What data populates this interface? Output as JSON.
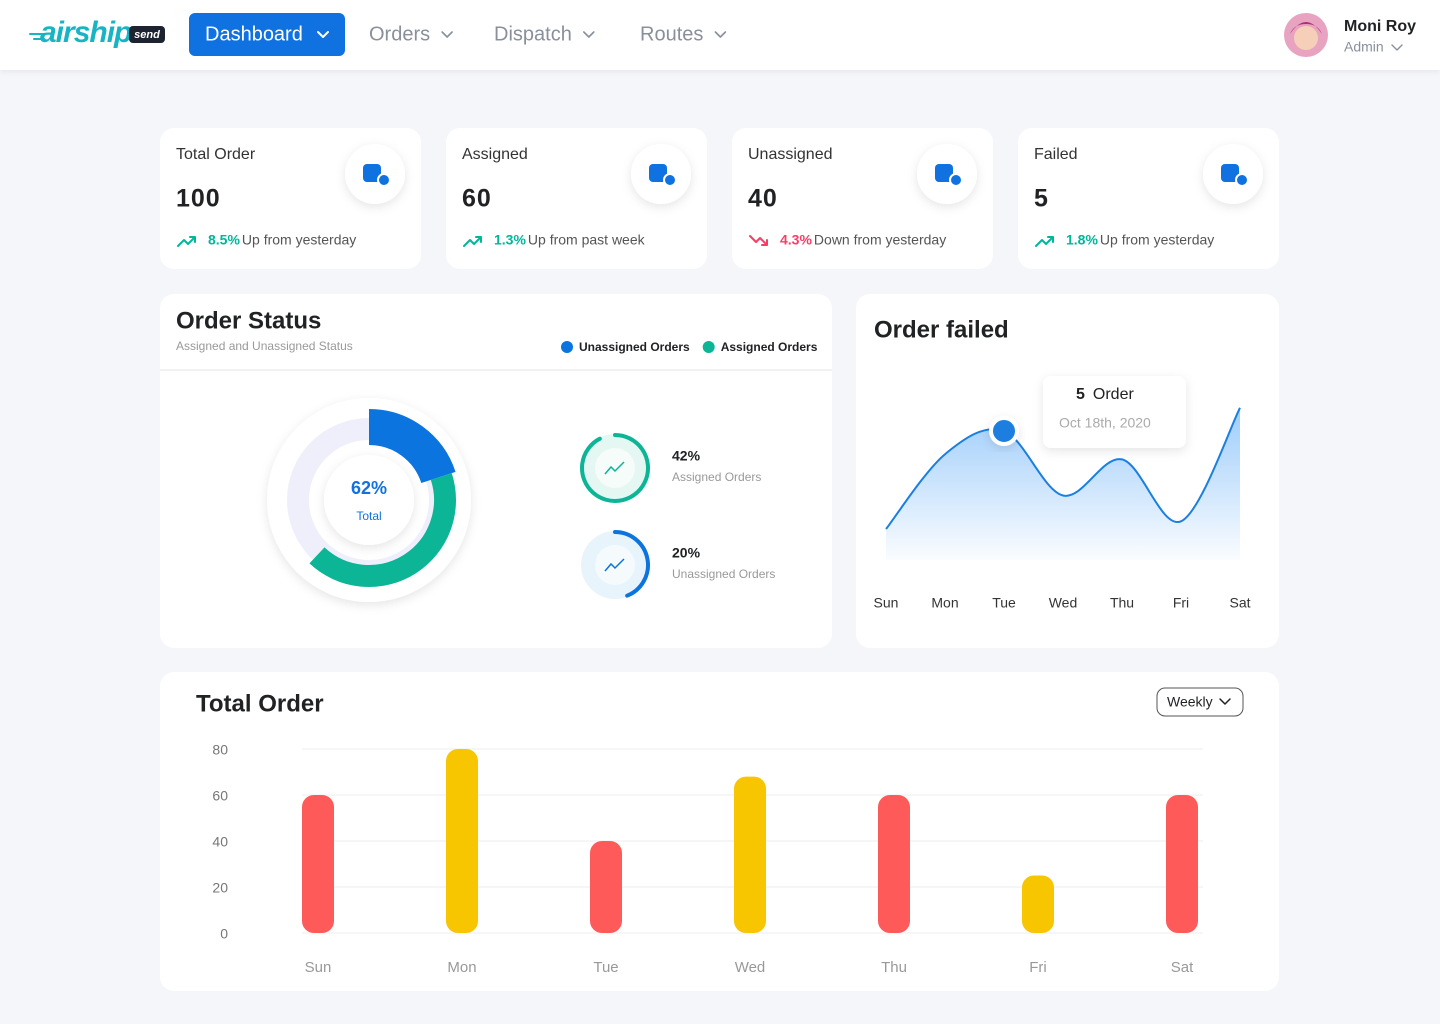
{
  "header": {
    "logo": "airship",
    "logo_badge": "send",
    "nav": [
      "Dashboard",
      "Orders",
      "Dispatch",
      "Routes"
    ],
    "user_name": "Moni Roy",
    "user_role": "Admin"
  },
  "stats": [
    {
      "title": "Total Order",
      "value": 100,
      "change": "8.5%",
      "note": "Up from yesterday",
      "trend": "up"
    },
    {
      "title": "Assigned",
      "value": 60,
      "change": "1.3%",
      "note": "Up from past week",
      "trend": "up"
    },
    {
      "title": "Unassigned",
      "value": 40,
      "change": "4.3%",
      "note": "Down from yesterday",
      "trend": "down"
    },
    {
      "title": "Failed",
      "value": 5,
      "change": "1.8%",
      "note": "Up from yesterday",
      "trend": "up"
    }
  ],
  "chart_data": [
    {
      "type": "donut",
      "title": "Order Status",
      "subtitle": "Assigned and Unassigned Status",
      "center_label": "62%",
      "center_text": "Total",
      "categories": [
        "Unassigned Orders",
        "Assigned Orders"
      ],
      "values": [
        20,
        42
      ],
      "value_labels": [
        "20%",
        "42%"
      ],
      "colors": [
        "#0b74de",
        "#0bb596"
      ]
    },
    {
      "type": "line",
      "title": "Order failed",
      "categories": [
        "Sun",
        "Mon",
        "Tue",
        "Wed",
        "Thu",
        "Fri",
        "Sat"
      ],
      "values": [
        1.2,
        4.1,
        5,
        2.5,
        3.9,
        1.5,
        5.9
      ],
      "color": "#1a7fe0",
      "tooltip_unit": "Order",
      "tooltip_date": "Oct 18th, 2020"
    },
    {
      "type": "bar",
      "title": "Total Order",
      "period": "Weekly",
      "categories": [
        "Sun",
        "Mon",
        "Tue",
        "Wed",
        "Thu",
        "Fri",
        "Sat"
      ],
      "values": [
        60,
        80,
        40,
        68,
        60,
        25,
        60
      ],
      "colors": [
        "#ff5a5a",
        "#f7c600",
        "#ff5a5a",
        "#f7c600",
        "#ff5a5a",
        "#f7c600",
        "#ff5a5a"
      ],
      "ylim": [
        0,
        80
      ],
      "yticks": [
        0,
        20,
        40,
        60,
        80
      ],
      "grid": true
    }
  ]
}
